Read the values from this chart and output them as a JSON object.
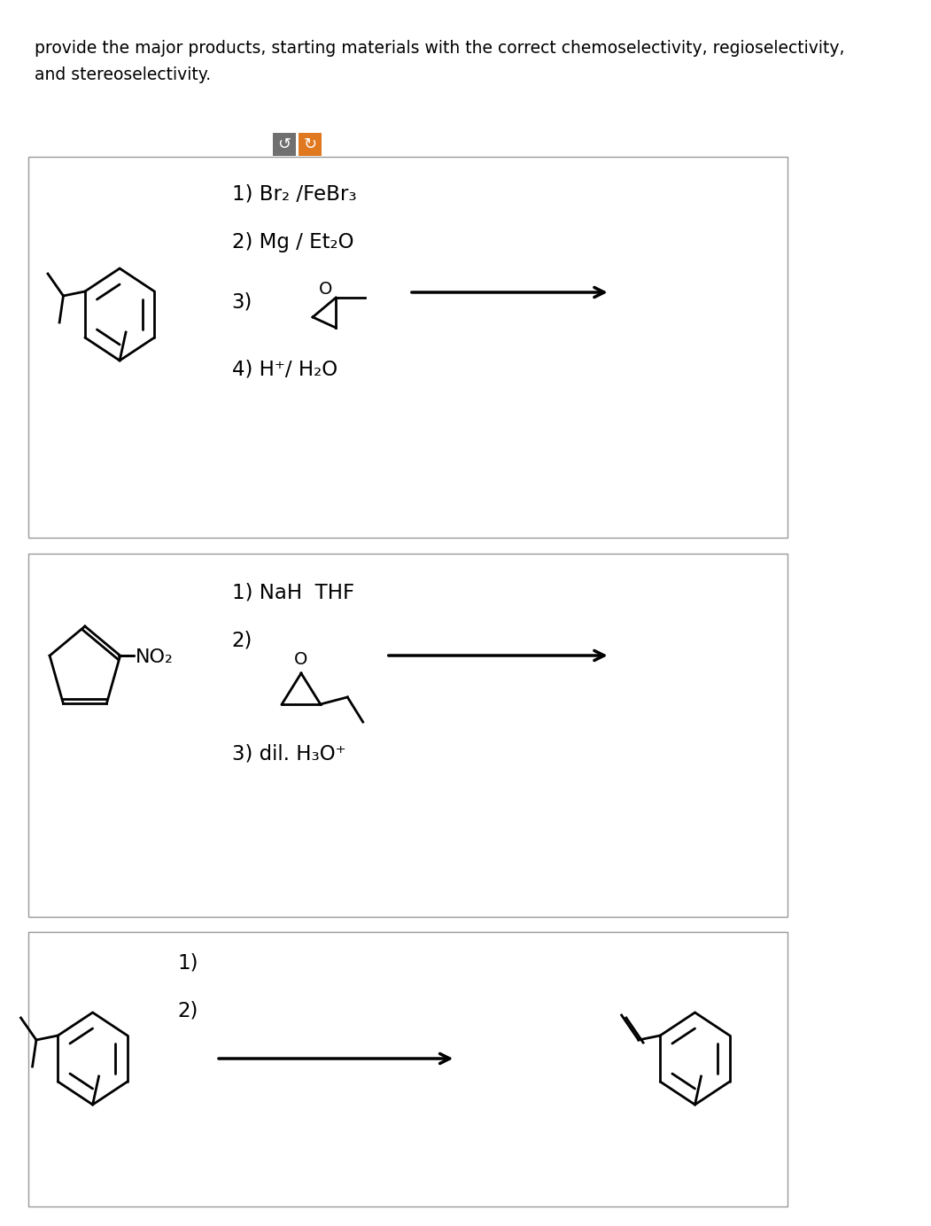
{
  "title_line1": "provide the major products, starting materials with the correct chemoselectivity, regioselectivity,",
  "title_line2": "and stereoselectivity.",
  "bg_color": "#ffffff",
  "reaction1": {
    "step1": "1) Br₂ /FeBr₃",
    "step2": "2) Mg / Et₂O",
    "step3": "3)",
    "step4": "4) H⁺/ H₂O"
  },
  "reaction2": {
    "step1": "1) NaH  THF",
    "step2": "2)",
    "step3": "3) dil. H₃O⁺"
  },
  "reaction3": {
    "step1": "1)",
    "step2": "2)"
  },
  "undo_btn_color": "#707070",
  "redo_btn_color": "#e07820"
}
